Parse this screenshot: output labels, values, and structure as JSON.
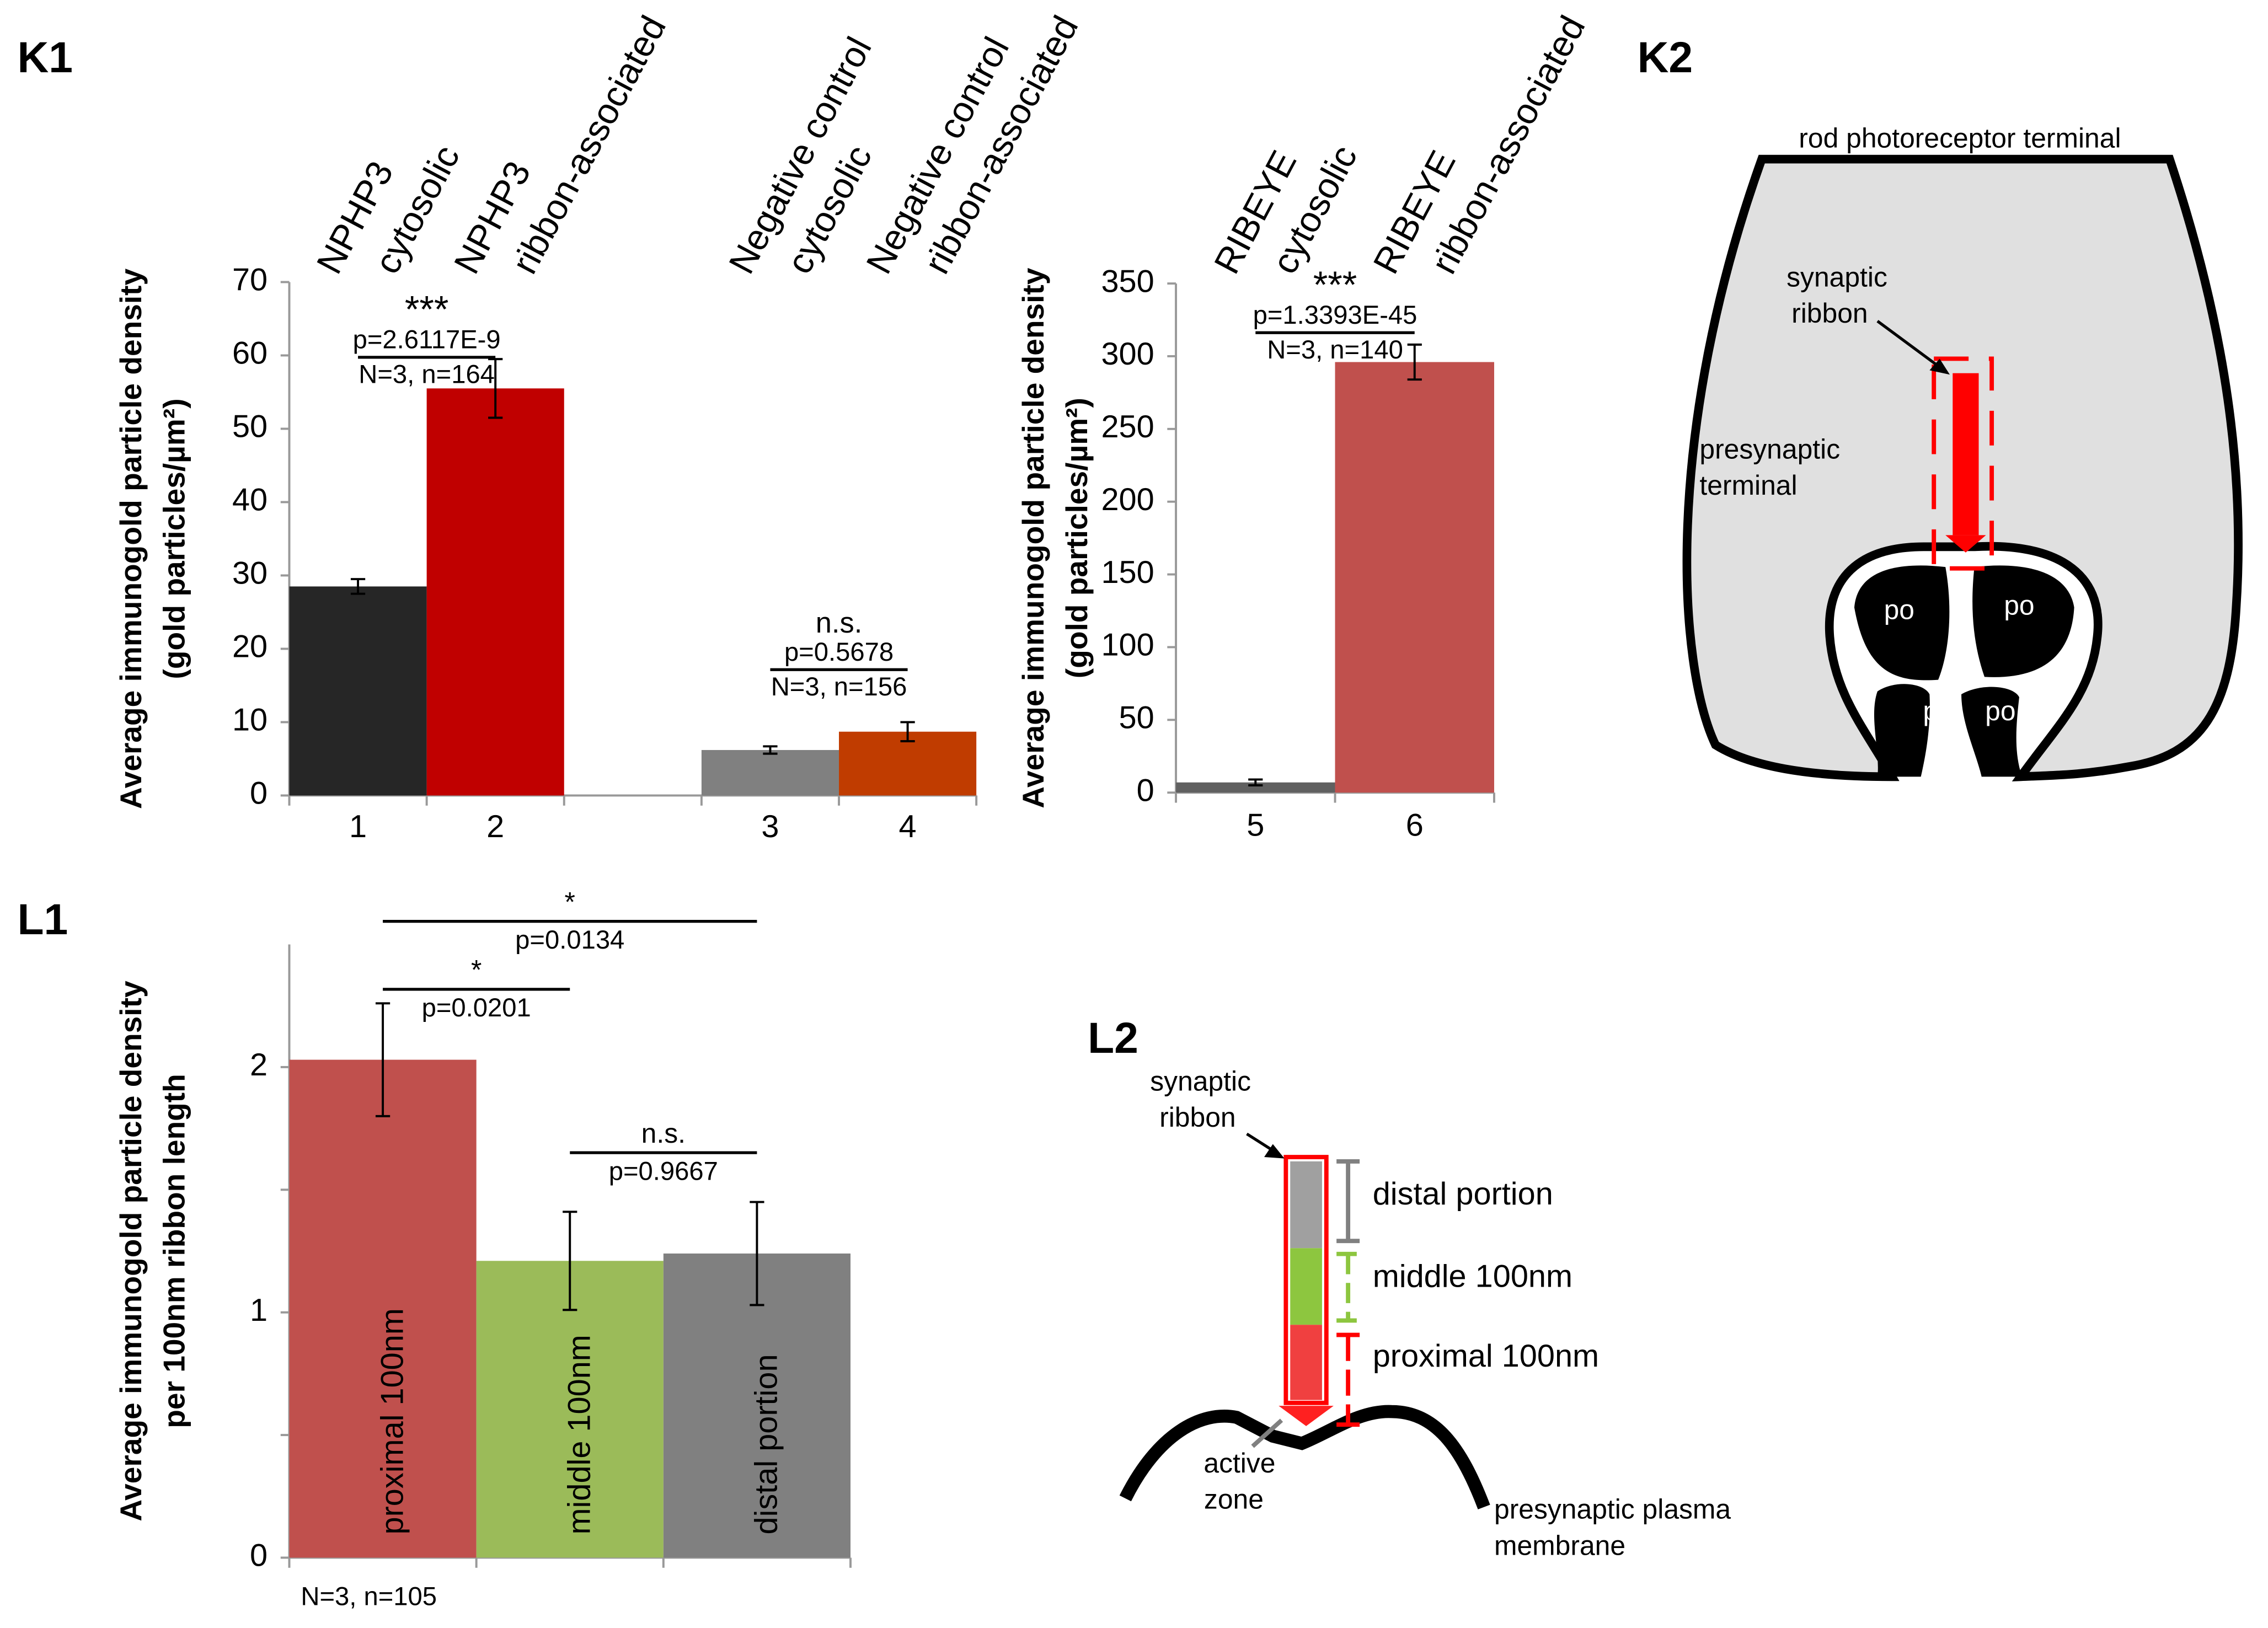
{
  "panel_labels": [
    "K1",
    "K2",
    "L1",
    "L2"
  ],
  "chart_data": [
    {
      "type": "bar",
      "ylabel": [
        "Average immunogold particle density",
        "(gold particles/µm²)"
      ],
      "categories": [
        "1",
        "2",
        null,
        "3",
        "4"
      ],
      "column_labels": [
        [
          "NPHP3",
          "cytosolic"
        ],
        [
          "NPHP3",
          "ribbon-associated"
        ],
        null,
        [
          "Negative control",
          "cytosolic"
        ],
        [
          "Negative control",
          "ribbon-associated"
        ]
      ],
      "values": [
        28.5,
        55.5,
        null,
        6.2,
        8.7
      ],
      "errors": [
        1.0,
        4.0,
        null,
        0.5,
        1.3
      ],
      "colors": [
        "#262626",
        "#c00000",
        null,
        "#808080",
        "#c03c00"
      ],
      "ylim": [
        0,
        70
      ],
      "yticks": [
        0,
        10,
        20,
        30,
        40,
        50,
        60,
        70
      ],
      "annotations": [
        {
          "bars": [
            0,
            1
          ],
          "text": "***",
          "p": "p=2.6117E-9",
          "n": "N=3, n=164"
        },
        {
          "bars": [
            3,
            4
          ],
          "text": "n.s.",
          "p": "p=0.5678",
          "n": "N=3, n=156"
        }
      ]
    },
    {
      "type": "bar",
      "ylabel": [
        "Average immunogold particle density",
        "(gold particles/µm²)"
      ],
      "categories": [
        "5",
        "6"
      ],
      "column_labels": [
        [
          "RIBEYE",
          "cytosolic"
        ],
        [
          "RIBEYE",
          "ribbon-associated"
        ]
      ],
      "values": [
        7,
        296
      ],
      "errors": [
        2,
        12
      ],
      "colors": [
        "#606060",
        "#c0504d"
      ],
      "ylim": [
        0,
        350
      ],
      "yticks": [
        0,
        50,
        100,
        150,
        200,
        250,
        300,
        350
      ],
      "annotations": [
        {
          "bars": [
            0,
            1
          ],
          "text": "***",
          "p": "p=1.3393E-45",
          "n": "N=3, n=140"
        }
      ]
    },
    {
      "type": "bar",
      "ylabel": [
        "Average immunogold particle density",
        "per 100nm ribbon length"
      ],
      "categories": [
        "proximal 100nm",
        "middle 100nm",
        "distal portion"
      ],
      "values": [
        2.03,
        1.21,
        1.24
      ],
      "errors": [
        0.23,
        0.2,
        0.21
      ],
      "colors": [
        "#c0504d",
        "#9bbb59",
        "#808080"
      ],
      "ylim": [
        0,
        2.5
      ],
      "yticks": [
        0,
        1,
        2
      ],
      "minor_yticks": [
        0.5,
        1.5
      ],
      "footnote": "N=3, n=105",
      "annotations": [
        {
          "bars": [
            0,
            2
          ],
          "text": "*",
          "p": "p=0.0134"
        },
        {
          "bars": [
            0,
            1
          ],
          "text": "*",
          "p": "p=0.0201"
        },
        {
          "bars": [
            1,
            2
          ],
          "text": "n.s.",
          "p": "p=0.9667"
        }
      ]
    }
  ],
  "diagrams": {
    "k2": {
      "title": "rod photoreceptor terminal",
      "ribbon_label": [
        "synaptic",
        "ribbon"
      ],
      "terminal_label": [
        "presynaptic",
        "terminal"
      ],
      "processes": [
        "po",
        "po",
        "po",
        "po"
      ]
    },
    "l2": {
      "ribbon_label": [
        "synaptic",
        "ribbon"
      ],
      "segments": [
        "distal portion",
        "middle 100nm",
        "proximal 100nm"
      ],
      "active_zone": [
        "active",
        "zone"
      ],
      "membrane": [
        "presynaptic plasma",
        "membrane"
      ]
    }
  }
}
